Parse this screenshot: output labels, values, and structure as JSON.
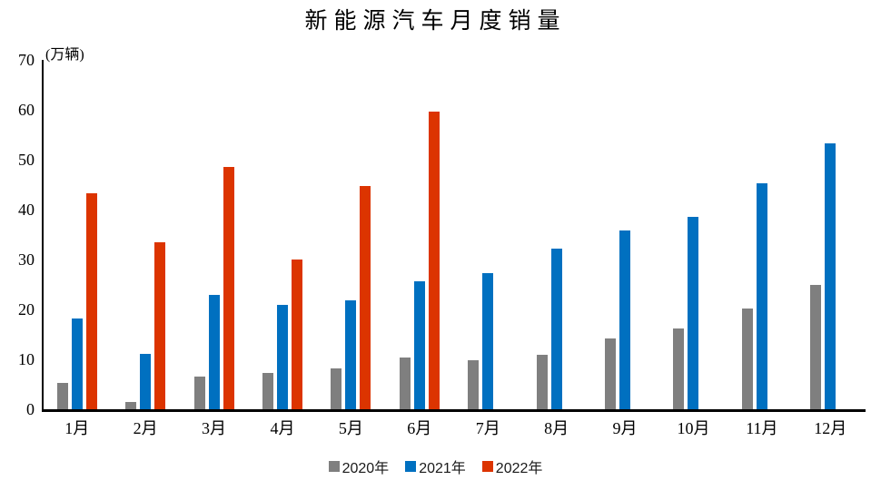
{
  "title": "新能源汽车月度销量",
  "unit_label": "(万辆)",
  "colors": {
    "series_2020": "#7F7F7F",
    "series_2021": "#0070C0",
    "series_2022": "#DC3400",
    "axis": "#000000",
    "background": "#FFFFFF"
  },
  "legend": {
    "items": [
      "2020年",
      "2021年",
      "2022年"
    ]
  },
  "chart_data": {
    "type": "bar",
    "title": "新能源汽车月度销量",
    "xlabel": "",
    "ylabel": "(万辆)",
    "categories": [
      "1月",
      "2月",
      "3月",
      "4月",
      "5月",
      "6月",
      "7月",
      "8月",
      "9月",
      "10月",
      "11月",
      "12月"
    ],
    "series": [
      {
        "name": "2020年",
        "color": "#7F7F7F",
        "values": [
          5.3,
          1.5,
          6.5,
          7.3,
          8.2,
          10.4,
          9.9,
          10.9,
          14.2,
          16.2,
          20.1,
          25.0
        ]
      },
      {
        "name": "2021年",
        "color": "#0070C0",
        "values": [
          18.1,
          11.1,
          22.9,
          20.9,
          21.9,
          25.7,
          27.2,
          32.2,
          35.8,
          38.5,
          45.2,
          53.2
        ]
      },
      {
        "name": "2022年",
        "color": "#DC3400",
        "values": [
          43.3,
          33.5,
          48.5,
          30.0,
          44.8,
          59.7,
          null,
          null,
          null,
          null,
          null,
          null
        ]
      }
    ],
    "ylim": [
      0,
      70
    ],
    "yticks": [
      0,
      10,
      20,
      30,
      40,
      50,
      60,
      70
    ],
    "grid": false,
    "legend_position": "bottom"
  }
}
